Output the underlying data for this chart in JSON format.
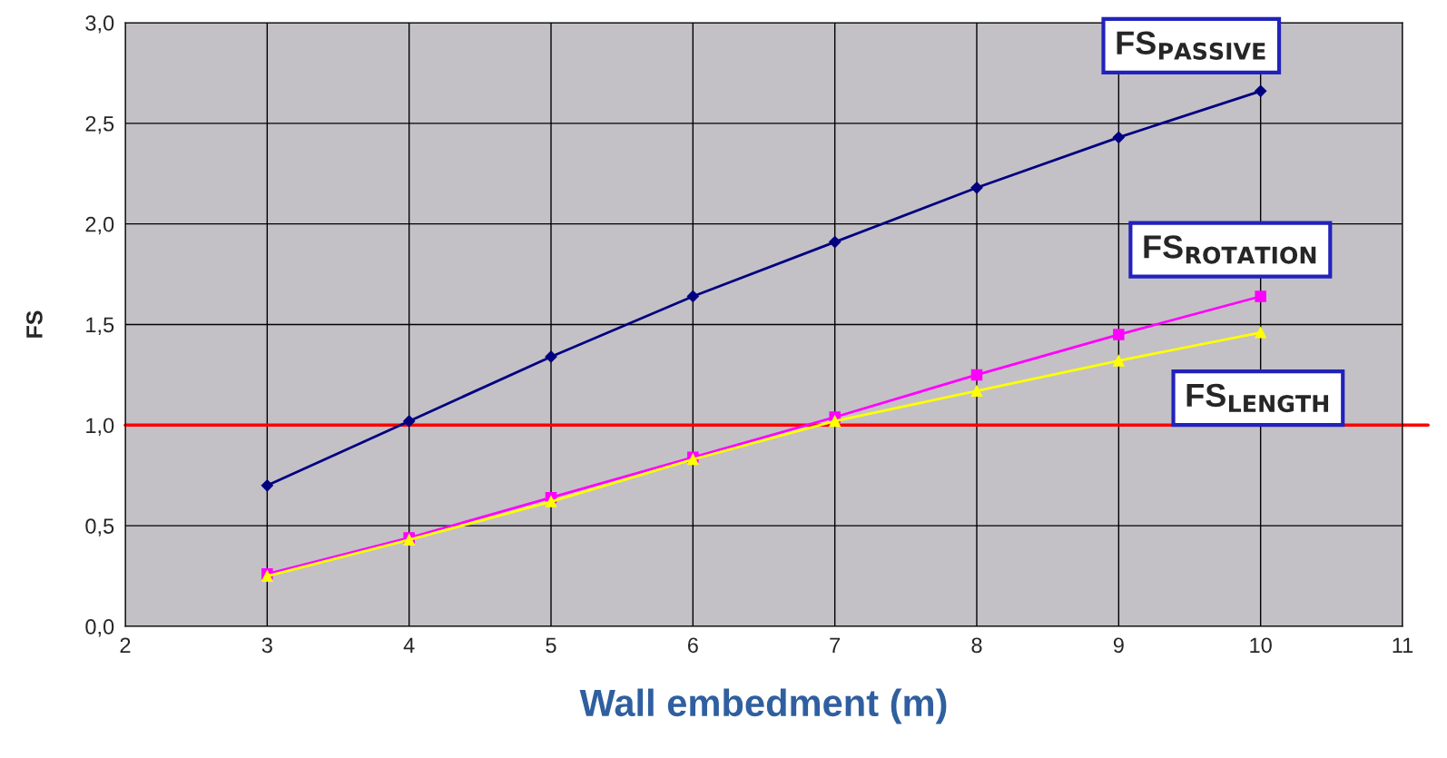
{
  "chart_data": {
    "type": "line",
    "xlabel": "Wall embedment (m)",
    "ylabel": "FS",
    "x": [
      3,
      4,
      5,
      6,
      7,
      8,
      9,
      10
    ],
    "series": [
      {
        "name": "FS$_{PASSIVE}$",
        "color": "#000080",
        "marker": "diamond",
        "values": [
          0.7,
          1.02,
          1.34,
          1.64,
          1.91,
          2.18,
          2.43,
          2.66
        ]
      },
      {
        "name": "FS$_{ROTATION}$",
        "color": "#ff00ff",
        "marker": "square",
        "values": [
          0.26,
          0.44,
          0.64,
          0.84,
          1.04,
          1.25,
          1.45,
          1.64
        ]
      },
      {
        "name": "FS$_{LENGTH}$",
        "color": "#ffff00",
        "marker": "triangle",
        "values": [
          0.25,
          0.43,
          0.62,
          0.83,
          1.02,
          1.17,
          1.32,
          1.46
        ]
      }
    ],
    "xlim": [
      2,
      11
    ],
    "xticks": [
      2,
      3,
      4,
      5,
      6,
      7,
      8,
      9,
      10,
      11
    ],
    "ylim": [
      0,
      3
    ],
    "yticks": [
      {
        "value": 0,
        "label": "0,0"
      },
      {
        "value": 0.5,
        "label": "0,5"
      },
      {
        "value": 1,
        "label": "1,0"
      },
      {
        "value": 1.5,
        "label": "1,5"
      },
      {
        "value": 2,
        "label": "2,0"
      },
      {
        "value": 2.5,
        "label": "2,5"
      },
      {
        "value": 3,
        "label": "3,0"
      }
    ],
    "ref_lines": [
      {
        "axis": "y",
        "value": 1,
        "color": "#ff0000"
      }
    ],
    "grid": true,
    "legend": false,
    "line_style": "solid"
  }
}
